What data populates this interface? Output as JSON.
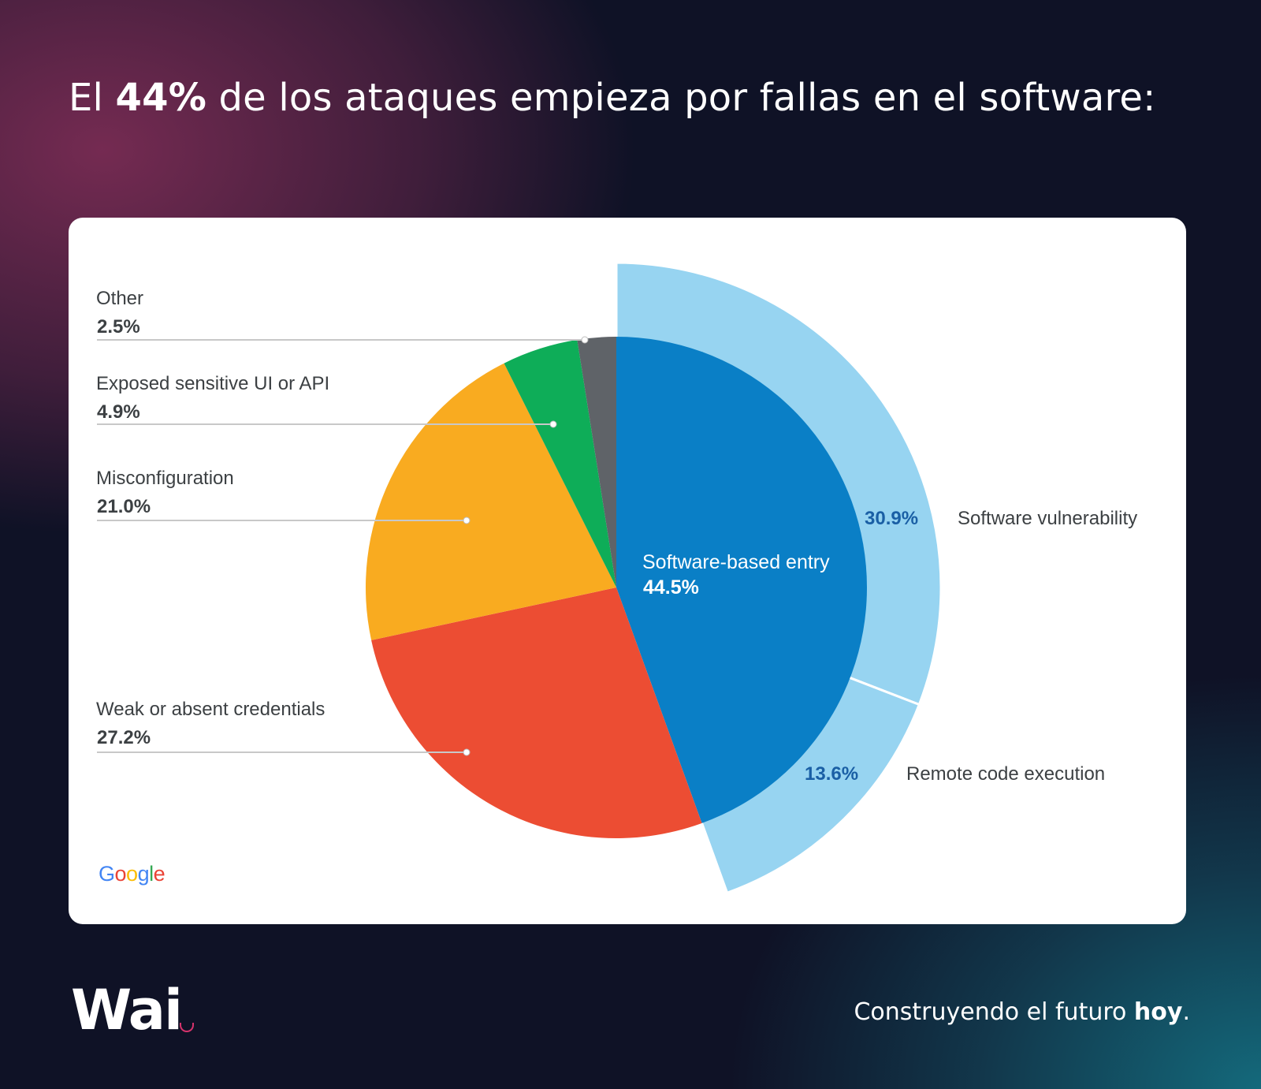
{
  "header": {
    "title_prefix": "El ",
    "title_bold": "44%",
    "title_suffix": " de los ataques empieza por fallas en el software:"
  },
  "chart_data": {
    "type": "pie",
    "title": "",
    "slices": [
      {
        "label": "Software-based entry",
        "value": 44.5,
        "display": "44.5%",
        "color": "#0a7fc6"
      },
      {
        "label": "Weak or absent credentials",
        "value": 27.2,
        "display": "27.2%",
        "color": "#ec4d33"
      },
      {
        "label": "Misconfiguration",
        "value": 21.0,
        "display": "21.0%",
        "color": "#f9ab20"
      },
      {
        "label": "Exposed sensitive UI or API",
        "value": 4.9,
        "display": "4.9%",
        "color": "#0ead58"
      },
      {
        "label": "Other",
        "value": 2.5,
        "display": "2.5%",
        "color": "#5f6368"
      }
    ],
    "breakdown": {
      "parent": "Software-based entry",
      "color": "#97d4f1",
      "text_color": "#1a5fa5",
      "segments": [
        {
          "label": "Software vulnerability",
          "value": 30.9,
          "display": "30.9%"
        },
        {
          "label": "Remote code execution",
          "value": 13.6,
          "display": "13.6%"
        }
      ]
    }
  },
  "source_logo": {
    "letters": [
      "G",
      "o",
      "o",
      "g",
      "l",
      "e"
    ],
    "colors": [
      "#4285f4",
      "#ea4335",
      "#fbbc05",
      "#4285f4",
      "#34a853",
      "#ea4335"
    ]
  },
  "footer": {
    "brand": "Wai",
    "tagline_prefix": "Construyendo el futuro ",
    "tagline_bold": "hoy",
    "tagline_suffix": "."
  }
}
